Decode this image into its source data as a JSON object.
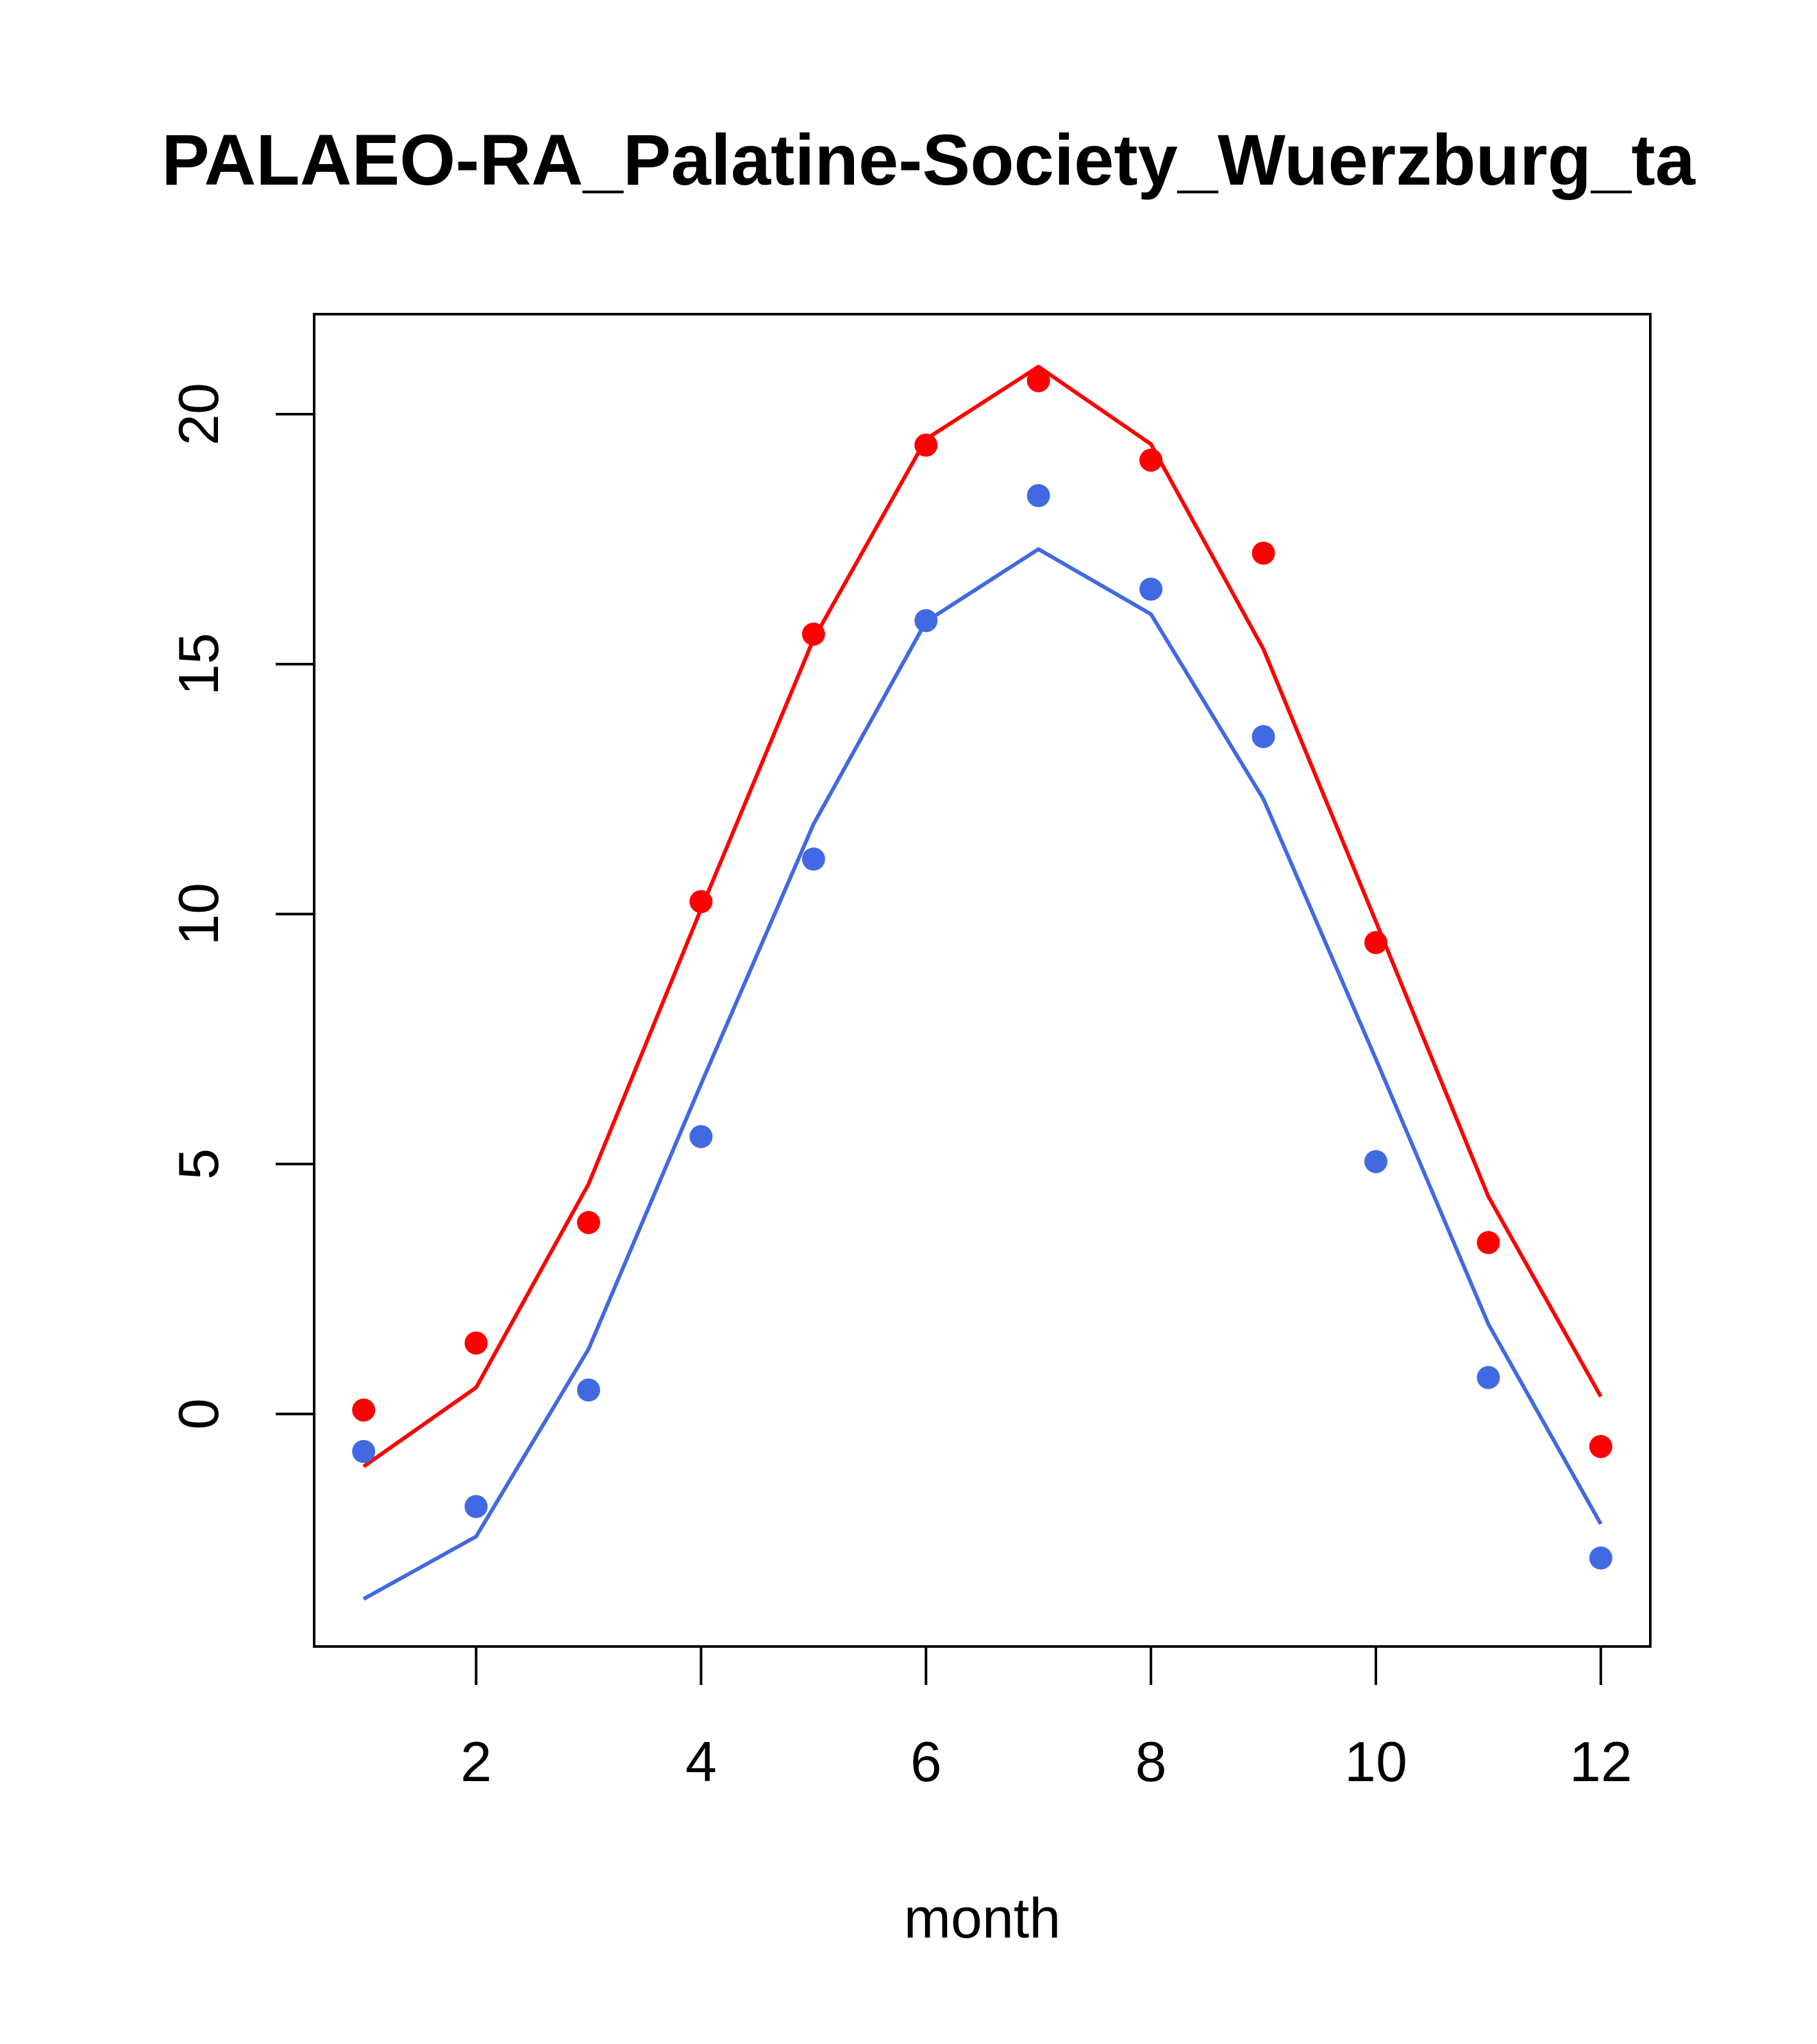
{
  "chart_data": {
    "type": "line",
    "title": "PALAEO-RA_Palatine-Society_Wuerzburg_ta",
    "xlabel": "month",
    "ylabel": "",
    "xlim": [
      0.56,
      12.44
    ],
    "ylim": [
      -4.65,
      22.0
    ],
    "x_ticks": [
      2,
      4,
      6,
      8,
      10,
      12
    ],
    "y_ticks": [
      0,
      5,
      10,
      15,
      20
    ],
    "grid": false,
    "x": [
      1,
      2,
      3,
      4,
      5,
      6,
      7,
      8,
      9,
      10,
      11,
      12
    ],
    "series": [
      {
        "color": "#ff0000",
        "line": [
          -1.05,
          0.53,
          4.6,
          10.1,
          15.5,
          19.5,
          20.95,
          19.4,
          15.3,
          9.85,
          4.35,
          0.35
        ],
        "points": [
          0.08,
          1.42,
          3.83,
          10.25,
          15.6,
          19.38,
          20.67,
          19.08,
          17.22,
          9.43,
          3.43,
          -0.65
        ]
      },
      {
        "color": "#4169e1",
        "line": [
          -3.7,
          -2.45,
          1.3,
          6.6,
          11.8,
          15.85,
          17.3,
          16.0,
          12.3,
          7.1,
          1.8,
          -2.2
        ],
        "points": [
          -0.75,
          -1.85,
          0.48,
          5.55,
          11.1,
          15.87,
          18.37,
          16.5,
          13.55,
          5.05,
          0.73,
          -2.88
        ]
      }
    ]
  }
}
